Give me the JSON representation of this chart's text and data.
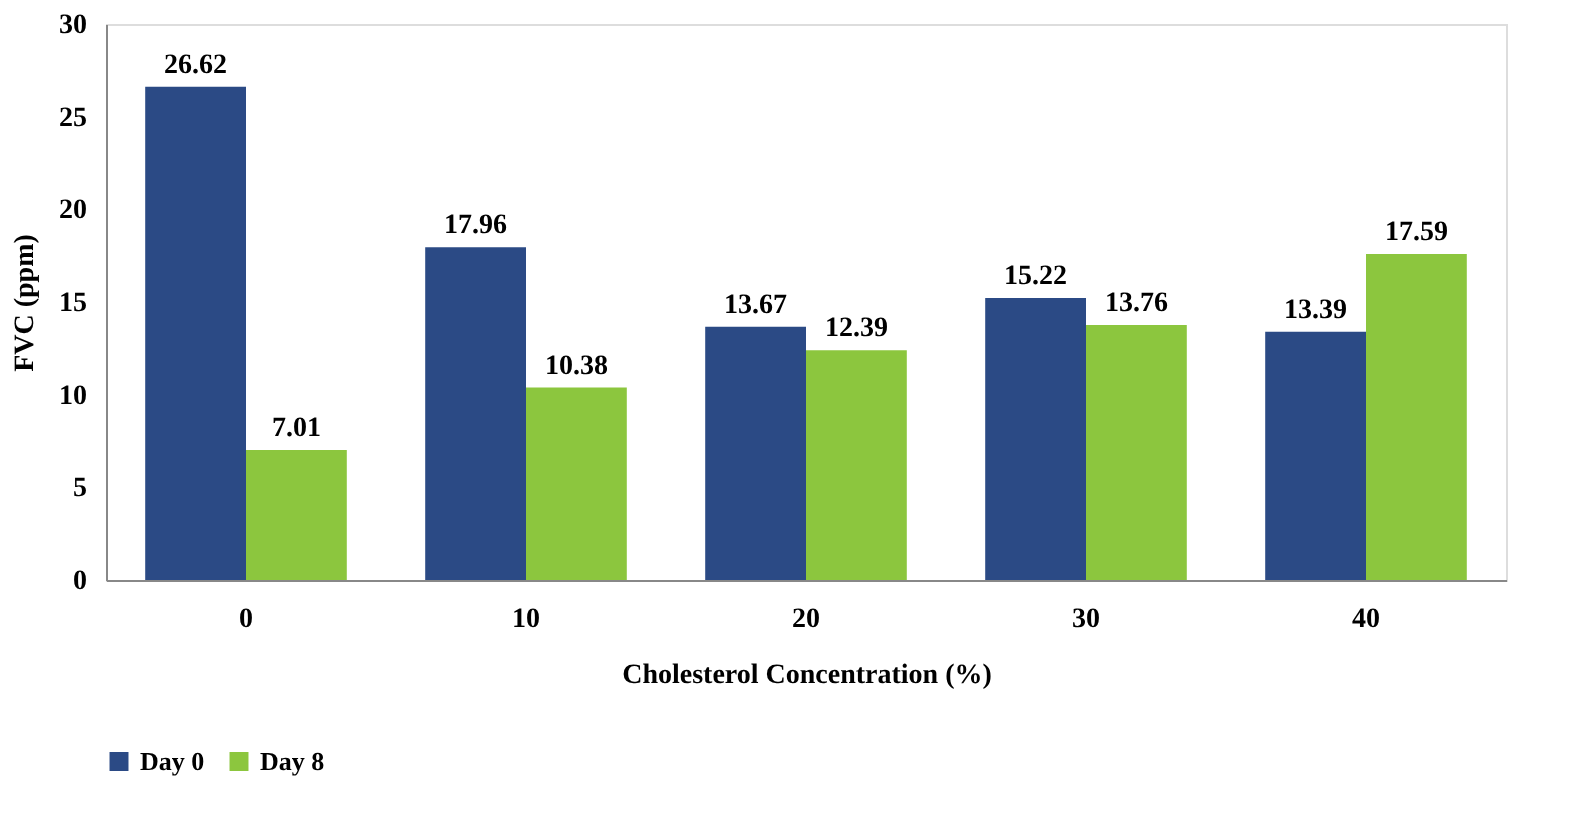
{
  "chart_data": {
    "type": "bar",
    "xlabel": "Cholesterol Concentration (%)",
    "ylabel": "FVC (ppm)",
    "categories": [
      "0",
      "10",
      "20",
      "30",
      "40"
    ],
    "series": [
      {
        "name": "Day 0",
        "color": "#2b4a85",
        "values": [
          26.62,
          17.96,
          13.67,
          15.22,
          13.39
        ]
      },
      {
        "name": "Day 8",
        "color": "#8cc63e",
        "values": [
          7.01,
          10.38,
          12.39,
          13.76,
          17.59
        ]
      }
    ],
    "ylim": [
      0,
      30
    ],
    "yticks": [
      0,
      5,
      10,
      15,
      20,
      25,
      30
    ],
    "grid": false,
    "legend": "bottom",
    "data_labels": true
  }
}
